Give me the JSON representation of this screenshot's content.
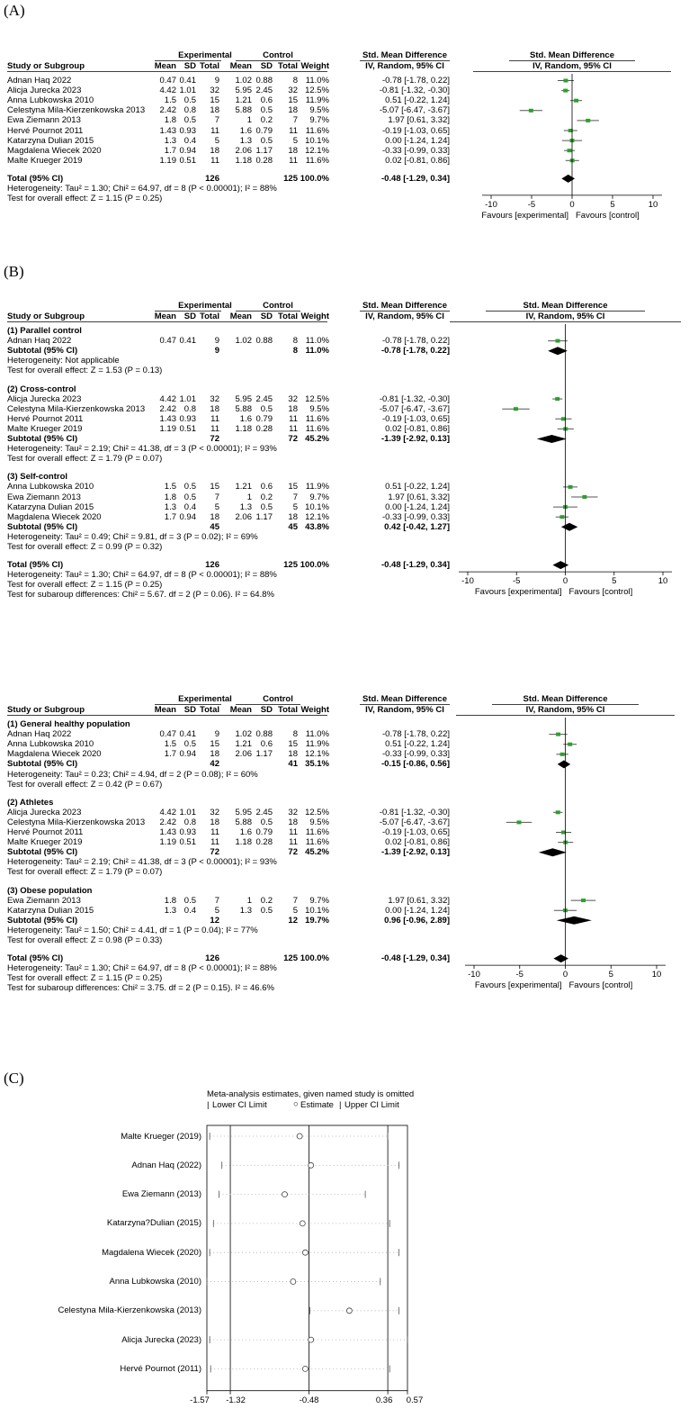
{
  "labels": {
    "A": "(A)",
    "B": "(B)",
    "C": "(C)"
  },
  "forest_a": {
    "header": {
      "exp": "Experimental",
      "ctl": "Control",
      "smd": "Std. Mean Difference",
      "smd2": "Std. Mean Difference",
      "study": "Study or Subgroup",
      "mean": "Mean",
      "sd": "SD",
      "total": "Total",
      "weight": "Weight",
      "ivr": "IV, Random, 95% CI",
      "ivr2": "IV, Random, 95% CI"
    },
    "groups": [
      {
        "title": "",
        "studies": [
          {
            "name": "Adnan Haq 2022",
            "em": "0.47",
            "esd": "0.41",
            "et": "9",
            "cm": "1.02",
            "csd": "0.88",
            "ct": "8",
            "w": "11.0%",
            "ci": "-0.78 [-1.78, 0.22]",
            "est": -0.78,
            "lo": -1.78,
            "hi": 0.22
          },
          {
            "name": "Alicja Jurecka 2023",
            "em": "4.42",
            "esd": "1.01",
            "et": "32",
            "cm": "5.95",
            "csd": "2.45",
            "ct": "32",
            "w": "12.5%",
            "ci": "-0.81 [-1.32, -0.30]",
            "est": -0.81,
            "lo": -1.32,
            "hi": -0.3
          },
          {
            "name": "Anna Lubkowska 2010",
            "em": "1.5",
            "esd": "0.5",
            "et": "15",
            "cm": "1.21",
            "csd": "0.6",
            "ct": "15",
            "w": "11.9%",
            "ci": "0.51 [-0.22, 1.24]",
            "est": 0.51,
            "lo": -0.22,
            "hi": 1.24
          },
          {
            "name": "Celestyna Mila-Kierzenkowska 2013",
            "em": "2.42",
            "esd": "0.8",
            "et": "18",
            "cm": "5.88",
            "csd": "0.5",
            "ct": "18",
            "w": "9.5%",
            "ci": "-5.07 [-6.47, -3.67]",
            "est": -5.07,
            "lo": -6.47,
            "hi": -3.67
          },
          {
            "name": "Ewa Ziemann 2013",
            "em": "1.8",
            "esd": "0.5",
            "et": "7",
            "cm": "1",
            "csd": "0.2",
            "ct": "7",
            "w": "9.7%",
            "ci": "1.97 [0.61, 3.32]",
            "est": 1.97,
            "lo": 0.61,
            "hi": 3.32
          },
          {
            "name": "Hervé Pournot 2011",
            "em": "1.43",
            "esd": "0.93",
            "et": "11",
            "cm": "1.6",
            "csd": "0.79",
            "ct": "11",
            "w": "11.6%",
            "ci": "-0.19 [-1.03, 0.65]",
            "est": -0.19,
            "lo": -1.03,
            "hi": 0.65
          },
          {
            "name": "Katarzyna Dulian 2015",
            "em": "1.3",
            "esd": "0.4",
            "et": "5",
            "cm": "1.3",
            "csd": "0.5",
            "ct": "5",
            "w": "10.1%",
            "ci": "0.00 [-1.24, 1.24]",
            "est": 0.0,
            "lo": -1.24,
            "hi": 1.24
          },
          {
            "name": "Magdalena Wiecek 2020",
            "em": "1.7",
            "esd": "0.94",
            "et": "18",
            "cm": "2.06",
            "csd": "1.17",
            "ct": "18",
            "w": "12.1%",
            "ci": "-0.33 [-0.99, 0.33]",
            "est": -0.33,
            "lo": -0.99,
            "hi": 0.33
          },
          {
            "name": "Malte Krueger 2019",
            "em": "1.19",
            "esd": "0.51",
            "et": "11",
            "cm": "1.18",
            "csd": "0.28",
            "ct": "11",
            "w": "11.6%",
            "ci": "0.02 [-0.81, 0.86]",
            "est": 0.02,
            "lo": -0.81,
            "hi": 0.86
          }
        ]
      }
    ],
    "total": {
      "label": "Total (95% CI)",
      "et": "126",
      "ct": "125",
      "w": "100.0%",
      "ci": "-0.48 [-1.29, 0.34]",
      "est": -0.48,
      "lo": -1.29,
      "hi": 0.34
    },
    "foot": [
      "Heterogeneity: Tau² = 1.30; Chi² = 64.97, df = 8 (P < 0.00001); I² = 88%",
      "Test for overall effect: Z = 1.15 (P = 0.25)"
    ],
    "axis": {
      "ticks": [
        "-10",
        "-5",
        "0",
        "5",
        "10"
      ],
      "tickvals": [
        -10,
        -5,
        0,
        5,
        10
      ],
      "left": "Favours [experimental]",
      "right": "Favours [control]"
    }
  },
  "forest_b1": {
    "header": {
      "exp": "Experimental",
      "ctl": "Control",
      "smd": "Std. Mean Difference",
      "smd2": "Std. Mean Difference",
      "study": "Study or Subgroup",
      "mean": "Mean",
      "sd": "SD",
      "total": "Total",
      "weight": "Weight",
      "ivr": "IV, Random, 95% CI",
      "ivr2": "IV, Random, 95% CI"
    },
    "groups": [
      {
        "title": "(1) Parallel control",
        "studies": [
          {
            "name": "Adnan Haq 2022",
            "em": "0.47",
            "esd": "0.41",
            "et": "9",
            "cm": "1.02",
            "csd": "0.88",
            "ct": "8",
            "w": "11.0%",
            "ci": "-0.78 [-1.78, 0.22]",
            "est": -0.78,
            "lo": -1.78,
            "hi": 0.22
          }
        ],
        "sub": {
          "label": "Subtotal (95% CI)",
          "et": "9",
          "ct": "8",
          "w": "11.0%",
          "ci": "-0.78 [-1.78, 0.22]",
          "est": -0.78,
          "lo": -1.78,
          "hi": 0.22
        },
        "foot": [
          "Heterogeneity: Not applicable",
          "Test for overall effect: Z = 1.53 (P = 0.13)"
        ]
      },
      {
        "title": "(2) Cross-control",
        "studies": [
          {
            "name": "Alicja Jurecka 2023",
            "em": "4.42",
            "esd": "1.01",
            "et": "32",
            "cm": "5.95",
            "csd": "2.45",
            "ct": "32",
            "w": "12.5%",
            "ci": "-0.81 [-1.32, -0.30]",
            "est": -0.81,
            "lo": -1.32,
            "hi": -0.3
          },
          {
            "name": "Celestyna Mila-Kierzenkowska 2013",
            "em": "2.42",
            "esd": "0.8",
            "et": "18",
            "cm": "5.88",
            "csd": "0.5",
            "ct": "18",
            "w": "9.5%",
            "ci": "-5.07 [-6.47, -3.67]",
            "est": -5.07,
            "lo": -6.47,
            "hi": -3.67
          },
          {
            "name": "Hervé Pournot 2011",
            "em": "1.43",
            "esd": "0.93",
            "et": "11",
            "cm": "1.6",
            "csd": "0.79",
            "ct": "11",
            "w": "11.6%",
            "ci": "-0.19 [-1.03, 0.65]",
            "est": -0.19,
            "lo": -1.03,
            "hi": 0.65
          },
          {
            "name": "Malte Krueger 2019",
            "em": "1.19",
            "esd": "0.51",
            "et": "11",
            "cm": "1.18",
            "csd": "0.28",
            "ct": "11",
            "w": "11.6%",
            "ci": "0.02 [-0.81, 0.86]",
            "est": 0.02,
            "lo": -0.81,
            "hi": 0.86
          }
        ],
        "sub": {
          "label": "Subtotal (95% CI)",
          "et": "72",
          "ct": "72",
          "w": "45.2%",
          "ci": "-1.39 [-2.92, 0.13]",
          "est": -1.39,
          "lo": -2.92,
          "hi": 0.13
        },
        "foot": [
          "Heterogeneity: Tau² = 2.19; Chi² = 41.38, df = 3 (P < 0.00001); I² = 93%",
          "Test for overall effect: Z = 1.79 (P = 0.07)"
        ]
      },
      {
        "title": "(3) Self-control",
        "studies": [
          {
            "name": "Anna Lubkowska 2010",
            "em": "1.5",
            "esd": "0.5",
            "et": "15",
            "cm": "1.21",
            "csd": "0.6",
            "ct": "15",
            "w": "11.9%",
            "ci": "0.51 [-0.22, 1.24]",
            "est": 0.51,
            "lo": -0.22,
            "hi": 1.24
          },
          {
            "name": "Ewa Ziemann 2013",
            "em": "1.8",
            "esd": "0.5",
            "et": "7",
            "cm": "1",
            "csd": "0.2",
            "ct": "7",
            "w": "9.7%",
            "ci": "1.97 [0.61, 3.32]",
            "est": 1.97,
            "lo": 0.61,
            "hi": 3.32
          },
          {
            "name": "Katarzyna Dulian 2015",
            "em": "1.3",
            "esd": "0.4",
            "et": "5",
            "cm": "1.3",
            "csd": "0.5",
            "ct": "5",
            "w": "10.1%",
            "ci": "0.00 [-1.24, 1.24]",
            "est": 0.0,
            "lo": -1.24,
            "hi": 1.24
          },
          {
            "name": "Magdalena Wiecek 2020",
            "em": "1.7",
            "esd": "0.94",
            "et": "18",
            "cm": "2.06",
            "csd": "1.17",
            "ct": "18",
            "w": "12.1%",
            "ci": "-0.33 [-0.99, 0.33]",
            "est": -0.33,
            "lo": -0.99,
            "hi": 0.33
          }
        ],
        "sub": {
          "label": "Subtotal (95% CI)",
          "et": "45",
          "ct": "45",
          "w": "43.8%",
          "ci": "0.42 [-0.42, 1.27]",
          "est": 0.42,
          "lo": -0.42,
          "hi": 1.27
        },
        "foot": [
          "Heterogeneity: Tau² = 0.49; Chi² = 9.81, df = 3 (P = 0.02); I² = 69%",
          "Test for overall effect: Z = 0.99 (P = 0.32)"
        ]
      }
    ],
    "total": {
      "label": "Total (95% CI)",
      "et": "126",
      "ct": "125",
      "w": "100.0%",
      "ci": "-0.48 [-1.29, 0.34]",
      "est": -0.48,
      "lo": -1.29,
      "hi": 0.34
    },
    "foot": [
      "Heterogeneity: Tau² = 1.30; Chi² = 64.97, df = 8 (P < 0.00001); I² = 88%",
      "Test for overall effect: Z = 1.15 (P = 0.25)",
      "Test for subaroup differences: Chi² = 5.67. df = 2 (P = 0.06). I² = 64.8%"
    ],
    "axis": {
      "ticks": [
        "-10",
        "-5",
        "0",
        "5",
        "10"
      ],
      "tickvals": [
        -10,
        -5,
        0,
        5,
        10
      ],
      "left": "Favours [experimental]",
      "right": "Favours [control]"
    }
  },
  "forest_b2": {
    "header": {
      "exp": "Experimental",
      "ctl": "Control",
      "smd": "Std. Mean Difference",
      "smd2": "Std. Mean Difference",
      "study": "Study or Subgroup",
      "mean": "Mean",
      "sd": "SD",
      "total": "Total",
      "weight": "Weight",
      "ivr": "IV, Random, 95% CI",
      "ivr2": "IV, Random, 95% CI"
    },
    "groups": [
      {
        "title": "(1) General healthy population",
        "studies": [
          {
            "name": "Adnan Haq 2022",
            "em": "0.47",
            "esd": "0.41",
            "et": "9",
            "cm": "1.02",
            "csd": "0.88",
            "ct": "8",
            "w": "11.0%",
            "ci": "-0.78 [-1.78, 0.22]",
            "est": -0.78,
            "lo": -1.78,
            "hi": 0.22
          },
          {
            "name": "Anna Lubkowska 2010",
            "em": "1.5",
            "esd": "0.5",
            "et": "15",
            "cm": "1.21",
            "csd": "0.6",
            "ct": "15",
            "w": "11.9%",
            "ci": "0.51 [-0.22, 1.24]",
            "est": 0.51,
            "lo": -0.22,
            "hi": 1.24
          },
          {
            "name": "Magdalena Wiecek 2020",
            "em": "1.7",
            "esd": "0.94",
            "et": "18",
            "cm": "2.06",
            "csd": "1.17",
            "ct": "18",
            "w": "12.1%",
            "ci": "-0.33 [-0.99, 0.33]",
            "est": -0.33,
            "lo": -0.99,
            "hi": 0.33
          }
        ],
        "sub": {
          "label": "Subtotal (95% CI)",
          "et": "42",
          "ct": "41",
          "w": "35.1%",
          "ci": "-0.15 [-0.86, 0.56]",
          "est": -0.15,
          "lo": -0.86,
          "hi": 0.56
        },
        "foot": [
          "Heterogeneity: Tau² = 0.23; Chi² = 4.94, df = 2 (P = 0.08); I² = 60%",
          "Test for overall effect: Z = 0.42 (P = 0.67)"
        ]
      },
      {
        "title": "(2) Athletes",
        "studies": [
          {
            "name": "Alicja Jurecka 2023",
            "em": "4.42",
            "esd": "1.01",
            "et": "32",
            "cm": "5.95",
            "csd": "2.45",
            "ct": "32",
            "w": "12.5%",
            "ci": "-0.81 [-1.32, -0.30]",
            "est": -0.81,
            "lo": -1.32,
            "hi": -0.3
          },
          {
            "name": "Celestyna Mila-Kierzenkowska 2013",
            "em": "2.42",
            "esd": "0.8",
            "et": "18",
            "cm": "5.88",
            "csd": "0.5",
            "ct": "18",
            "w": "9.5%",
            "ci": "-5.07 [-6.47, -3.67]",
            "est": -5.07,
            "lo": -6.47,
            "hi": -3.67
          },
          {
            "name": "Hervé Pournot 2011",
            "em": "1.43",
            "esd": "0.93",
            "et": "11",
            "cm": "1.6",
            "csd": "0.79",
            "ct": "11",
            "w": "11.6%",
            "ci": "-0.19 [-1.03, 0.65]",
            "est": -0.19,
            "lo": -1.03,
            "hi": 0.65
          },
          {
            "name": "Malte Krueger 2019",
            "em": "1.19",
            "esd": "0.51",
            "et": "11",
            "cm": "1.18",
            "csd": "0.28",
            "ct": "11",
            "w": "11.6%",
            "ci": "0.02 [-0.81, 0.86]",
            "est": 0.02,
            "lo": -0.81,
            "hi": 0.86
          }
        ],
        "sub": {
          "label": "Subtotal (95% CI)",
          "et": "72",
          "ct": "72",
          "w": "45.2%",
          "ci": "-1.39 [-2.92, 0.13]",
          "est": -1.39,
          "lo": -2.92,
          "hi": 0.13
        },
        "foot": [
          "Heterogeneity: Tau² = 2.19; Chi² = 41.38, df = 3 (P < 0.00001); I² = 93%",
          "Test for overall effect: Z = 1.79 (P = 0.07)"
        ]
      },
      {
        "title": "(3) Obese population",
        "studies": [
          {
            "name": "Ewa Ziemann 2013",
            "em": "1.8",
            "esd": "0.5",
            "et": "7",
            "cm": "1",
            "csd": "0.2",
            "ct": "7",
            "w": "9.7%",
            "ci": "1.97 [0.61, 3.32]",
            "est": 1.97,
            "lo": 0.61,
            "hi": 3.32
          },
          {
            "name": "Katarzyna Dulian 2015",
            "em": "1.3",
            "esd": "0.4",
            "et": "5",
            "cm": "1.3",
            "csd": "0.5",
            "ct": "5",
            "w": "10.1%",
            "ci": "0.00 [-1.24, 1.24]",
            "est": 0.0,
            "lo": -1.24,
            "hi": 1.24
          }
        ],
        "sub": {
          "label": "Subtotal (95% CI)",
          "et": "12",
          "ct": "12",
          "w": "19.7%",
          "ci": "0.96 [-0.96, 2.89]",
          "est": 0.96,
          "lo": -0.96,
          "hi": 2.89
        },
        "foot": [
          "Heterogeneity: Tau² = 1.50; Chi² = 4.41, df = 1 (P = 0.04); I² = 77%",
          "Test for overall effect: Z = 0.98 (P = 0.33)"
        ]
      }
    ],
    "total": {
      "label": "Total (95% CI)",
      "et": "126",
      "ct": "125",
      "w": "100.0%",
      "ci": "-0.48 [-1.29, 0.34]",
      "est": -0.48,
      "lo": -1.29,
      "hi": 0.34
    },
    "foot": [
      "Heterogeneity: Tau² = 1.30; Chi² = 64.97, df = 8 (P < 0.00001); I² = 88%",
      "Test for overall effect: Z = 1.15 (P = 0.25)",
      "Test for subaroup differences: Chi² = 3.75. df = 2 (P = 0.15). I² = 46.6%"
    ],
    "axis": {
      "ticks": [
        "-10",
        "-5",
        "0",
        "5",
        "10"
      ],
      "tickvals": [
        -10,
        -5,
        0,
        5,
        10
      ],
      "left": "Favours [experimental]",
      "right": "Favours [control]"
    }
  },
  "chart_data": {
    "type": "scatter",
    "title": "Meta-analysis estimates, given named study is omitted",
    "legend": {
      "lower": "Lower CI Limit",
      "est": "Estimate",
      "upper": "Upper CI Limit"
    },
    "x_ticks": [
      "-1.57",
      "-1.32",
      "-0.48",
      "0.36",
      "0.57"
    ],
    "x_tickvals": [
      -1.57,
      -1.32,
      -0.48,
      0.36,
      0.57
    ],
    "xlim": [
      -1.57,
      0.57
    ],
    "ref_lines": [
      -1.32,
      -0.48,
      0.36
    ],
    "rows": [
      {
        "name": "Malte Krueger (2019)",
        "lo": -1.54,
        "est": -0.58,
        "hi": 0.36
      },
      {
        "name": "Adnan Haq (2022)",
        "lo": -1.41,
        "est": -0.46,
        "hi": 0.48
      },
      {
        "name": "Ewa Ziemann (2013)",
        "lo": -1.44,
        "est": -0.74,
        "hi": 0.12
      },
      {
        "name": "Katarzyna?Dulian (2015)",
        "lo": -1.5,
        "est": -0.55,
        "hi": 0.38
      },
      {
        "name": "Magdalena Wiecek (2020)",
        "lo": -1.54,
        "est": -0.52,
        "hi": 0.48
      },
      {
        "name": "Anna Lubkowska (2010)",
        "lo": -1.57,
        "est": -0.65,
        "hi": 0.28
      },
      {
        "name": "Celestyna Mila-Kierzenkowska  (2013)",
        "lo": -0.47,
        "est": -0.05,
        "hi": 0.48
      },
      {
        "name": "Alicja Jurecka (2023)",
        "lo": -1.54,
        "est": -0.46,
        "hi": 0.57
      },
      {
        "name": "Hervé Pournot (2011)",
        "lo": -1.53,
        "est": -0.52,
        "hi": 0.38
      }
    ]
  }
}
